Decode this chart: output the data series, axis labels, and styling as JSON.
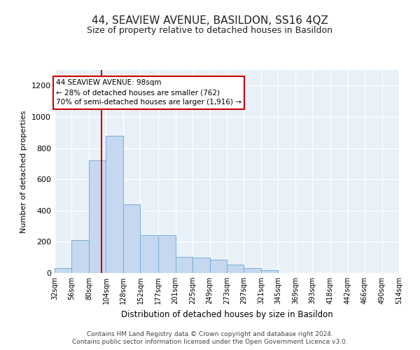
{
  "title": "44, SEAVIEW AVENUE, BASILDON, SS16 4QZ",
  "subtitle": "Size of property relative to detached houses in Basildon",
  "xlabel": "Distribution of detached houses by size in Basildon",
  "ylabel": "Number of detached properties",
  "bar_color": "#c5d8f0",
  "bar_edge_color": "#7aadd4",
  "background_color": "#e8f0f8",
  "grid_color": "#ffffff",
  "bins": [
    32,
    56,
    80,
    104,
    128,
    152,
    177,
    201,
    225,
    249,
    273,
    297,
    321,
    345,
    369,
    393,
    418,
    442,
    466,
    490,
    514
  ],
  "values": [
    30,
    210,
    720,
    880,
    440,
    240,
    240,
    105,
    100,
    85,
    55,
    30,
    20,
    0,
    0,
    0,
    0,
    0,
    0,
    0
  ],
  "property_size": 98,
  "property_line_color": "#cc0000",
  "annotation_line1": "44 SEAVIEW AVENUE: 98sqm",
  "annotation_line2": "← 28% of detached houses are smaller (762)",
  "annotation_line3": "70% of semi-detached houses are larger (1,916) →",
  "annotation_box_color": "#ffffff",
  "annotation_border_color": "#cc0000",
  "ylim": [
    0,
    1300
  ],
  "yticks": [
    0,
    200,
    400,
    600,
    800,
    1000,
    1200
  ],
  "footer_line1": "Contains HM Land Registry data © Crown copyright and database right 2024.",
  "footer_line2": "Contains public sector information licensed under the Open Government Licence v3.0.",
  "figsize": [
    6.0,
    5.0
  ],
  "dpi": 100
}
